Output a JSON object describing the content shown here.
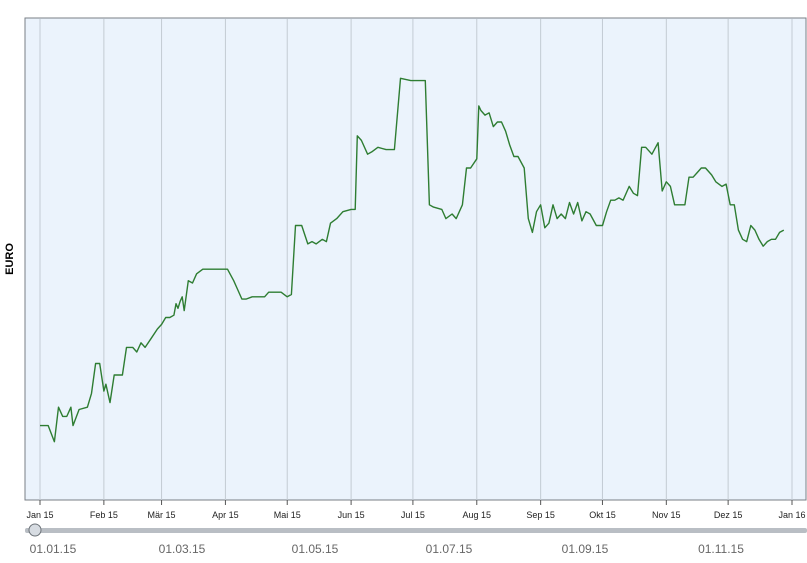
{
  "chart_data": {
    "type": "line",
    "ylabel": "EURO",
    "xlabel": "",
    "title": "",
    "x_tick_labels": [
      "Jan 15",
      "Feb 15",
      "Mär 15",
      "Apr 15",
      "Mai 15",
      "Jun 15",
      "Jul 15",
      "Aug 15",
      "Sep 15",
      "Okt 15",
      "Nov 15",
      "Dez 15",
      "Jan 16"
    ],
    "xlim": [
      "2015-01-01",
      "2016-01-01"
    ],
    "y_ticks_visible": false,
    "grid": "vertical",
    "series": [
      {
        "color": "#2e7d32",
        "points": [
          [
            "2015-01-01",
            0.14
          ],
          [
            "2015-01-05",
            0.14
          ],
          [
            "2015-01-08",
            0.105
          ],
          [
            "2015-01-10",
            0.18
          ],
          [
            "2015-01-12",
            0.16
          ],
          [
            "2015-01-14",
            0.16
          ],
          [
            "2015-01-16",
            0.18
          ],
          [
            "2015-01-17",
            0.14
          ],
          [
            "2015-01-20",
            0.175
          ],
          [
            "2015-01-24",
            0.18
          ],
          [
            "2015-01-26",
            0.21
          ],
          [
            "2015-01-28",
            0.275
          ],
          [
            "2015-01-30",
            0.275
          ],
          [
            "2015-02-01",
            0.215
          ],
          [
            "2015-02-02",
            0.23
          ],
          [
            "2015-02-04",
            0.19
          ],
          [
            "2015-02-06",
            0.25
          ],
          [
            "2015-02-10",
            0.25
          ],
          [
            "2015-02-12",
            0.31
          ],
          [
            "2015-02-15",
            0.31
          ],
          [
            "2015-02-17",
            0.3
          ],
          [
            "2015-02-19",
            0.32
          ],
          [
            "2015-02-21",
            0.31
          ],
          [
            "2015-02-24",
            0.33
          ],
          [
            "2015-02-27",
            0.35
          ],
          [
            "2015-03-01",
            0.36
          ],
          [
            "2015-03-03",
            0.375
          ],
          [
            "2015-03-05",
            0.375
          ],
          [
            "2015-03-07",
            0.38
          ],
          [
            "2015-03-08",
            0.405
          ],
          [
            "2015-03-09",
            0.395
          ],
          [
            "2015-03-10",
            0.41
          ],
          [
            "2015-03-11",
            0.42
          ],
          [
            "2015-03-12",
            0.39
          ],
          [
            "2015-03-14",
            0.455
          ],
          [
            "2015-03-16",
            0.45
          ],
          [
            "2015-03-18",
            0.47
          ],
          [
            "2015-03-21",
            0.48
          ],
          [
            "2015-03-26",
            0.48
          ],
          [
            "2015-04-02",
            0.48
          ],
          [
            "2015-04-05",
            0.455
          ],
          [
            "2015-04-07",
            0.435
          ],
          [
            "2015-04-09",
            0.415
          ],
          [
            "2015-04-11",
            0.415
          ],
          [
            "2015-04-14",
            0.42
          ],
          [
            "2015-04-17",
            0.42
          ],
          [
            "2015-04-20",
            0.42
          ],
          [
            "2015-04-22",
            0.43
          ],
          [
            "2015-04-26",
            0.43
          ],
          [
            "2015-04-28",
            0.43
          ],
          [
            "2015-05-01",
            0.42
          ],
          [
            "2015-05-03",
            0.425
          ],
          [
            "2015-05-05",
            0.575
          ],
          [
            "2015-05-08",
            0.575
          ],
          [
            "2015-05-11",
            0.535
          ],
          [
            "2015-05-13",
            0.54
          ],
          [
            "2015-05-15",
            0.535
          ],
          [
            "2015-05-18",
            0.545
          ],
          [
            "2015-05-20",
            0.54
          ],
          [
            "2015-05-22",
            0.58
          ],
          [
            "2015-05-25",
            0.59
          ],
          [
            "2015-05-28",
            0.605
          ],
          [
            "2015-06-01",
            0.61
          ],
          [
            "2015-06-03",
            0.61
          ],
          [
            "2015-06-04",
            0.77
          ],
          [
            "2015-06-06",
            0.76
          ],
          [
            "2015-06-09",
            0.73
          ],
          [
            "2015-06-11",
            0.735
          ],
          [
            "2015-06-14",
            0.745
          ],
          [
            "2015-06-18",
            0.74
          ],
          [
            "2015-06-22",
            0.74
          ],
          [
            "2015-06-25",
            0.895
          ],
          [
            "2015-06-30",
            0.89
          ],
          [
            "2015-07-07",
            0.89
          ],
          [
            "2015-07-09",
            0.62
          ],
          [
            "2015-07-11",
            0.615
          ],
          [
            "2015-07-15",
            0.61
          ],
          [
            "2015-07-17",
            0.59
          ],
          [
            "2015-07-20",
            0.6
          ],
          [
            "2015-07-22",
            0.59
          ],
          [
            "2015-07-25",
            0.62
          ],
          [
            "2015-07-27",
            0.7
          ],
          [
            "2015-07-29",
            0.7
          ],
          [
            "2015-08-01",
            0.72
          ],
          [
            "2015-08-02",
            0.835
          ],
          [
            "2015-08-03",
            0.825
          ],
          [
            "2015-08-05",
            0.815
          ],
          [
            "2015-08-07",
            0.82
          ],
          [
            "2015-08-09",
            0.79
          ],
          [
            "2015-08-11",
            0.8
          ],
          [
            "2015-08-13",
            0.8
          ],
          [
            "2015-08-15",
            0.78
          ],
          [
            "2015-08-17",
            0.75
          ],
          [
            "2015-08-19",
            0.725
          ],
          [
            "2015-08-21",
            0.725
          ],
          [
            "2015-08-24",
            0.7
          ],
          [
            "2015-08-26",
            0.59
          ],
          [
            "2015-08-28",
            0.56
          ],
          [
            "2015-08-30",
            0.605
          ],
          [
            "2015-09-01",
            0.62
          ],
          [
            "2015-09-03",
            0.57
          ],
          [
            "2015-09-05",
            0.58
          ],
          [
            "2015-09-07",
            0.62
          ],
          [
            "2015-09-09",
            0.59
          ],
          [
            "2015-09-11",
            0.6
          ],
          [
            "2015-09-13",
            0.59
          ],
          [
            "2015-09-15",
            0.625
          ],
          [
            "2015-09-17",
            0.6
          ],
          [
            "2015-09-19",
            0.625
          ],
          [
            "2015-09-21",
            0.585
          ],
          [
            "2015-09-23",
            0.605
          ],
          [
            "2015-09-25",
            0.6
          ],
          [
            "2015-09-28",
            0.575
          ],
          [
            "2015-10-01",
            0.575
          ],
          [
            "2015-10-03",
            0.605
          ],
          [
            "2015-10-05",
            0.63
          ],
          [
            "2015-10-07",
            0.63
          ],
          [
            "2015-10-09",
            0.635
          ],
          [
            "2015-10-11",
            0.63
          ],
          [
            "2015-10-14",
            0.66
          ],
          [
            "2015-10-16",
            0.645
          ],
          [
            "2015-10-18",
            0.64
          ],
          [
            "2015-10-20",
            0.745
          ],
          [
            "2015-10-22",
            0.745
          ],
          [
            "2015-10-25",
            0.73
          ],
          [
            "2015-10-28",
            0.755
          ],
          [
            "2015-10-30",
            0.65
          ],
          [
            "2015-11-01",
            0.67
          ],
          [
            "2015-11-03",
            0.66
          ],
          [
            "2015-11-05",
            0.62
          ],
          [
            "2015-11-07",
            0.62
          ],
          [
            "2015-11-10",
            0.62
          ],
          [
            "2015-11-12",
            0.68
          ],
          [
            "2015-11-14",
            0.68
          ],
          [
            "2015-11-16",
            0.69
          ],
          [
            "2015-11-18",
            0.7
          ],
          [
            "2015-11-20",
            0.7
          ],
          [
            "2015-11-23",
            0.685
          ],
          [
            "2015-11-25",
            0.67
          ],
          [
            "2015-11-28",
            0.66
          ],
          [
            "2015-11-30",
            0.665
          ],
          [
            "2015-12-02",
            0.62
          ],
          [
            "2015-12-04",
            0.62
          ],
          [
            "2015-12-06",
            0.565
          ],
          [
            "2015-12-08",
            0.545
          ],
          [
            "2015-12-10",
            0.54
          ],
          [
            "2015-12-12",
            0.575
          ],
          [
            "2015-12-14",
            0.565
          ],
          [
            "2015-12-16",
            0.545
          ],
          [
            "2015-12-18",
            0.53
          ],
          [
            "2015-12-20",
            0.54
          ],
          [
            "2015-12-22",
            0.545
          ],
          [
            "2015-12-24",
            0.545
          ],
          [
            "2015-12-26",
            0.56
          ],
          [
            "2015-12-28",
            0.565
          ]
        ]
      }
    ],
    "ylim": [
      0,
      1
    ]
  },
  "range_selector": {
    "labels": [
      "01.01.15",
      "01.03.15",
      "01.05.15",
      "01.07.15",
      "01.09.15",
      "01.11.15"
    ]
  },
  "colors": {
    "plot_background": "#ebf3fc",
    "grid": "#c3cbd3",
    "line": "#2e7d32",
    "slider_track": "#b9bec4"
  }
}
